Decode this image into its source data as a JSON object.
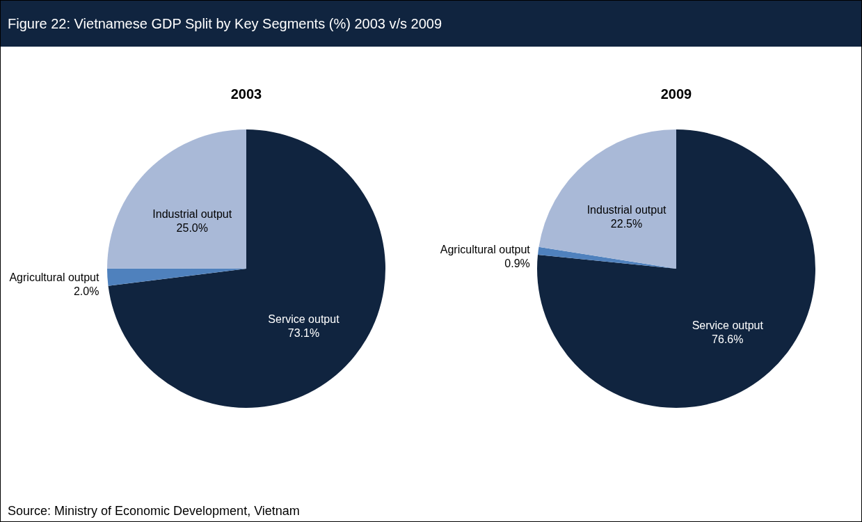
{
  "chart_data": [
    {
      "type": "other",
      "title": "Figure 22: Vietnamese GDP Split by Key Segments (%) 2003 v/s 2009",
      "annotations": [
        "Source: Ministry of Economic Development, Vietnam"
      ]
    },
    {
      "type": "pie",
      "title": "2003",
      "categories": [
        "Service output",
        "Agricultural output",
        "Industrial output"
      ],
      "values": [
        73.1,
        2.0,
        25.0
      ],
      "value_labels": [
        "73.1%",
        "2.0%",
        "25.0%"
      ],
      "colors": [
        "#10243f",
        "#4f81bd",
        "#a9b9d7"
      ],
      "legend": false
    },
    {
      "type": "pie",
      "title": "2009",
      "categories": [
        "Service output",
        "Agricultural output",
        "Industrial output"
      ],
      "values": [
        76.6,
        0.9,
        22.5
      ],
      "value_labels": [
        "76.6%",
        "0.9%",
        "22.5%"
      ],
      "colors": [
        "#10243f",
        "#4f81bd",
        "#a9b9d7"
      ],
      "legend": false
    }
  ]
}
